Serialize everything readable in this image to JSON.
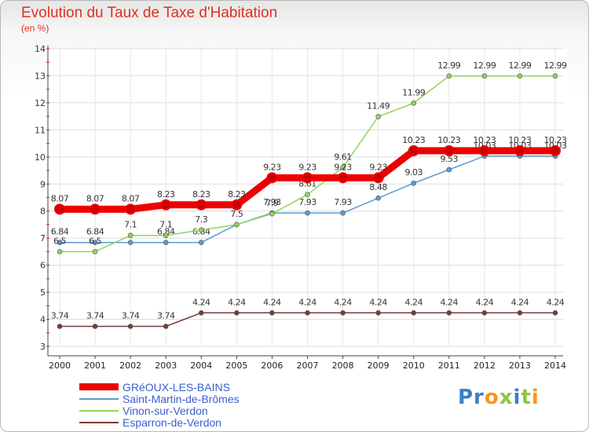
{
  "header": {
    "title": "Evolution du Taux de Taxe d'Habitation",
    "subtitle": "(en %)"
  },
  "logo": {
    "text": "Proxiti"
  },
  "chart_data": {
    "type": "line",
    "title": "Evolution du Taux de Taxe d'Habitation",
    "subtitle": "(en %)",
    "ylim": [
      3,
      14
    ],
    "yticks": [
      3,
      4,
      5,
      6,
      7,
      8,
      9,
      10,
      11,
      12,
      13,
      14
    ],
    "x": [
      "2000",
      "2001",
      "2002",
      "2003",
      "2004",
      "2005",
      "2006",
      "2007",
      "2008",
      "2009",
      "2010",
      "2011",
      "2012",
      "2013",
      "2014"
    ],
    "grid": true,
    "legend_position": "bottom-left",
    "series": [
      {
        "name": "Saint-Martin-de-Brômes",
        "color": "#5b9bd5",
        "style": "thin",
        "values": [
          6.84,
          6.84,
          6.84,
          6.84,
          6.84,
          7.5,
          7.93,
          7.93,
          7.93,
          8.48,
          9.03,
          9.53,
          10.03,
          10.03,
          10.03
        ],
        "labels": [
          "6.84",
          "6.84",
          "",
          "6.84",
          "6.84",
          "",
          "7.93",
          "7.93",
          "7.93",
          "8.48",
          "9.03",
          "9.53",
          "10.03",
          "10.03",
          "10.03"
        ]
      },
      {
        "name": "Vinon-sur-Verdon",
        "color": "#8fd45a",
        "style": "thin",
        "values": [
          6.5,
          6.5,
          7.1,
          7.1,
          7.3,
          7.5,
          7.9,
          8.61,
          9.61,
          11.49,
          11.99,
          12.99,
          12.99,
          12.99,
          12.99
        ],
        "labels": [
          "6.5",
          "6.5",
          "7.1",
          "7.1",
          "7.3",
          "7.5",
          "7.9",
          "8.61",
          "9.61",
          "11.49",
          "11.99",
          "12.99",
          "12.99",
          "12.99",
          "12.99"
        ]
      },
      {
        "name": "Esparron-de-Verdon",
        "color": "#7a3a3a",
        "style": "thin",
        "values": [
          3.74,
          3.74,
          3.74,
          3.74,
          4.24,
          4.24,
          4.24,
          4.24,
          4.24,
          4.24,
          4.24,
          4.24,
          4.24,
          4.24,
          4.24
        ],
        "labels": [
          "3.74",
          "3.74",
          "3.74",
          "3.74",
          "4.24",
          "4.24",
          "4.24",
          "4.24",
          "4.24",
          "4.24",
          "4.24",
          "4.24",
          "4.24",
          "4.24",
          "4.24"
        ]
      },
      {
        "name": "GRéOUX-LES-BAINS",
        "color": "#ee0000",
        "style": "thick",
        "values": [
          8.07,
          8.07,
          8.07,
          8.23,
          8.23,
          8.23,
          9.23,
          9.23,
          9.23,
          9.23,
          10.23,
          10.23,
          10.23,
          10.23,
          10.23
        ],
        "labels": [
          "8.07",
          "8.07",
          "8.07",
          "8.23",
          "8.23",
          "8.23",
          "9.23",
          "9.23",
          "9.23",
          "9.23",
          "10.23",
          "10.23",
          "10.23",
          "10.23",
          "10.23"
        ]
      }
    ],
    "legend": [
      {
        "name": "GRéOUX-LES-BAINS",
        "color": "#ee0000",
        "style": "thick"
      },
      {
        "name": "Saint-Martin-de-Brômes",
        "color": "#5b9bd5",
        "style": "thin"
      },
      {
        "name": "Vinon-sur-Verdon",
        "color": "#8fd45a",
        "style": "thin"
      },
      {
        "name": "Esparron-de-Verdon",
        "color": "#7a3a3a",
        "style": "thin"
      }
    ]
  }
}
